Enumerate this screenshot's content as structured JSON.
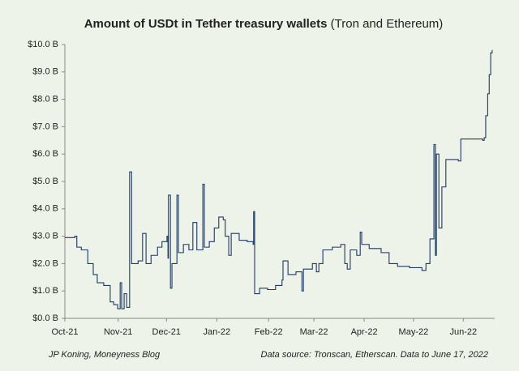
{
  "chart_data": {
    "type": "line",
    "step": "after",
    "title": "Amount of USDt in Tether treasury wallets",
    "title_note": "(Tron and Ethereum)",
    "footer_left": "JP Koning, Moneyness Blog",
    "footer_right": "Data source: Tronscan, Etherscan. Data to June 17, 2022",
    "color": "#1f3864",
    "xlim": [
      0,
      8.63
    ],
    "xticks": [
      {
        "value": 0,
        "label": "Oct-21"
      },
      {
        "value": 1.07,
        "label": "Nov-21"
      },
      {
        "value": 2.04,
        "label": "Dec-21"
      },
      {
        "value": 3.05,
        "label": "Jan-22"
      },
      {
        "value": 4.09,
        "label": "Feb-22"
      },
      {
        "value": 5,
        "label": "Mar-22"
      },
      {
        "value": 6.01,
        "label": "Apr-22"
      },
      {
        "value": 7,
        "label": "May-22"
      },
      {
        "value": 8,
        "label": "Jun-22"
      }
    ],
    "ylim": [
      0,
      10
    ],
    "yticks": [
      {
        "value": 0,
        "label": "$0.0 B"
      },
      {
        "value": 1,
        "label": "$1.0 B"
      },
      {
        "value": 2,
        "label": "$2.0 B"
      },
      {
        "value": 3,
        "label": "$3.0 B"
      },
      {
        "value": 4,
        "label": "$4.0 B"
      },
      {
        "value": 5,
        "label": "$5.0 B"
      },
      {
        "value": 6,
        "label": "$6.0 B"
      },
      {
        "value": 7,
        "label": "$7.0 B"
      },
      {
        "value": 8,
        "label": "$8.0 B"
      },
      {
        "value": 9,
        "label": "$9.0 B"
      },
      {
        "value": 10,
        "label": "$10.0 B"
      }
    ],
    "x": [
      0,
      0.2,
      0.24,
      0.33,
      0.46,
      0.57,
      0.65,
      0.78,
      0.91,
      0.98,
      1.06,
      1.11,
      1.14,
      1.19,
      1.24,
      1.3,
      1.34,
      1.47,
      1.56,
      1.63,
      1.73,
      1.86,
      1.95,
      2.05,
      2.07,
      2.08,
      2.12,
      2.15,
      2.25,
      2.28,
      2.38,
      2.49,
      2.57,
      2.65,
      2.77,
      2.8,
      2.9,
      3.0,
      3.09,
      3.18,
      3.22,
      3.29,
      3.34,
      3.5,
      3.66,
      3.78,
      3.79,
      3.81,
      3.91,
      4.07,
      4.23,
      4.36,
      4.38,
      4.48,
      4.64,
      4.76,
      4.79,
      4.97,
      5.05,
      5.1,
      5.18,
      5.37,
      5.54,
      5.62,
      5.67,
      5.73,
      5.86,
      5.93,
      5.96,
      6.11,
      6.35,
      6.51,
      6.68,
      6.92,
      7.17,
      7.25,
      7.33,
      7.41,
      7.44,
      7.46,
      7.51,
      7.57,
      7.65,
      7.9,
      7.95,
      8.22,
      8.39,
      8.42,
      8.45,
      8.49,
      8.52,
      8.55,
      8.58
    ],
    "values": [
      2.95,
      3.0,
      2.6,
      2.5,
      2.0,
      1.6,
      1.3,
      1.2,
      0.6,
      0.5,
      0.35,
      1.3,
      0.35,
      0.9,
      0.4,
      5.35,
      2.0,
      2.1,
      3.1,
      2.0,
      2.3,
      2.6,
      2.8,
      3.0,
      2.2,
      4.5,
      1.1,
      2.0,
      4.5,
      2.4,
      2.7,
      2.5,
      3.5,
      2.5,
      4.9,
      2.6,
      2.8,
      3.3,
      3.7,
      3.6,
      3.0,
      2.3,
      3.1,
      2.85,
      2.8,
      2.7,
      3.9,
      0.9,
      1.1,
      1.05,
      1.2,
      1.4,
      2.1,
      1.6,
      1.7,
      1.0,
      1.8,
      2.0,
      1.7,
      2.0,
      2.5,
      2.6,
      2.7,
      2.0,
      1.8,
      2.5,
      2.3,
      3.15,
      2.7,
      2.55,
      2.4,
      2.0,
      1.9,
      1.85,
      1.75,
      2.0,
      2.9,
      6.35,
      2.3,
      6.0,
      3.3,
      4.8,
      5.8,
      5.75,
      6.55,
      6.55,
      6.5,
      6.6,
      7.4,
      8.2,
      8.9,
      9.7,
      9.8
    ]
  }
}
